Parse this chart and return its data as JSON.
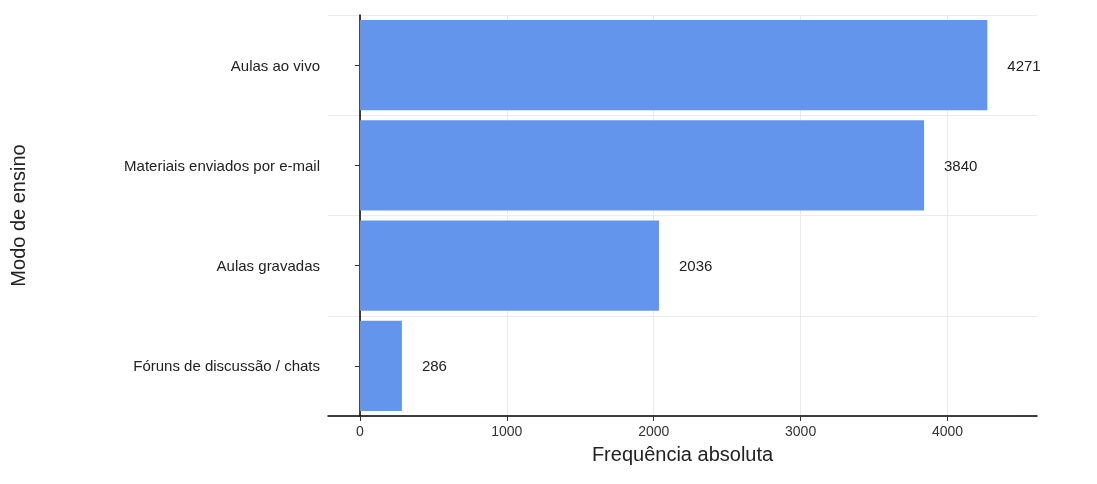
{
  "chart_data": {
    "type": "bar",
    "orientation": "horizontal",
    "xlabel": "Frequência absoluta",
    "ylabel": "Modo de ensino",
    "categories": [
      "Aulas ao vivo",
      "Materiais enviados por e-mail",
      "Aulas gravadas",
      "Fóruns de discussão / chats"
    ],
    "values": [
      4271,
      3840,
      2036,
      286
    ],
    "color": "#6495ed",
    "data_labels": true,
    "xlim": [
      -217,
      4609
    ],
    "xticks": [
      0,
      1000,
      2000,
      3000,
      4000
    ],
    "grid": true
  }
}
